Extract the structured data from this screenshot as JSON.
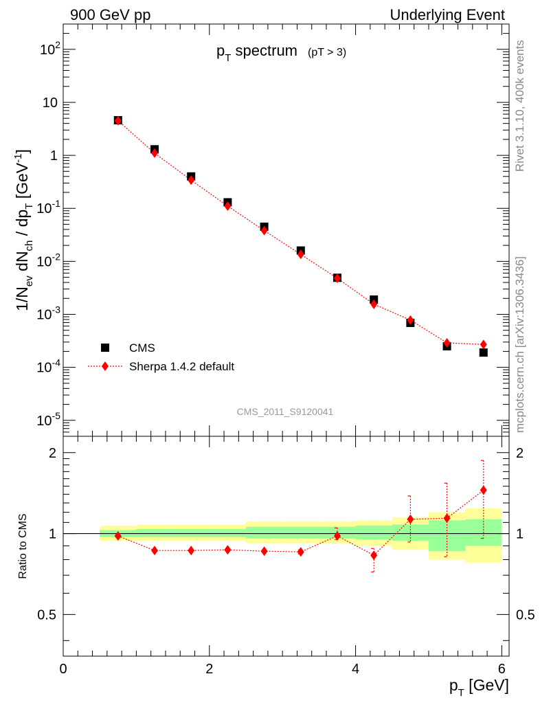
{
  "header": {
    "left": "900 GeV pp",
    "right": "Underlying Event"
  },
  "side": {
    "rivet": "Rivet 3.1.10,  400k events",
    "mcplots": "mcplots.cern.ch [arXiv:1306.3436]"
  },
  "chart_data": [
    {
      "type": "scatter",
      "title_main": "p",
      "title_sub": "T",
      "title_rest": " spectrum",
      "title_cut": "(pT >  3)",
      "analysis_id": "CMS_2011_S9120041",
      "ylabel": "1/N_ev dN_ch / dp_T [GeV^-1]",
      "yscale": "log",
      "ylim": [
        5e-06,
        300
      ],
      "xlim": [
        0,
        6.1
      ],
      "ytick_labels": [
        "10^-5",
        "10^-4",
        "10^-3",
        "10^-2",
        "10^-1",
        "1",
        "10",
        "10^2"
      ],
      "legend": [
        "CMS",
        "Sherpa 1.4.2 default"
      ],
      "legend_position": "bottom-left",
      "series": [
        {
          "name": "CMS",
          "marker": "square",
          "color": "#000000",
          "x": [
            0.75,
            1.25,
            1.75,
            2.25,
            2.75,
            3.25,
            3.75,
            4.25,
            4.75,
            5.25,
            5.75
          ],
          "values": [
            4.6,
            1.3,
            0.4,
            0.13,
            0.045,
            0.016,
            0.0049,
            0.0019,
            0.00069,
            0.00025,
            0.00019
          ]
        },
        {
          "name": "Sherpa 1.4.2 default",
          "marker": "diamond",
          "color": "#ff0000",
          "linestyle": "dotted",
          "x": [
            0.75,
            1.25,
            1.75,
            2.25,
            2.75,
            3.25,
            3.75,
            4.25,
            4.75,
            5.25,
            5.75
          ],
          "values": [
            4.5,
            1.1,
            0.34,
            0.11,
            0.038,
            0.0135,
            0.0048,
            0.00155,
            0.00078,
            0.00029,
            0.00027
          ]
        }
      ]
    },
    {
      "type": "line",
      "ylabel": "Ratio to CMS",
      "xlabel": "p_T [GeV]",
      "xlim": [
        0,
        6.1
      ],
      "ylim": [
        0.35,
        2.3
      ],
      "yscale": "log",
      "yticks": [
        0.5,
        1,
        2
      ],
      "ytick_labels": [
        "0.5",
        "1",
        "2"
      ],
      "xticks": [
        0,
        2,
        4,
        6
      ],
      "xtick_labels": [
        "0",
        "2",
        "4",
        "6"
      ],
      "reference_line": 1,
      "bands": {
        "edges": [
          0.5,
          1.0,
          1.5,
          2.0,
          2.5,
          3.0,
          3.5,
          4.0,
          4.5,
          5.0,
          5.5,
          6.0
        ],
        "yellow_lo": [
          0.94,
          0.94,
          0.94,
          0.94,
          0.92,
          0.92,
          0.92,
          0.9,
          0.87,
          0.8,
          0.78
        ],
        "yellow_hi": [
          1.07,
          1.08,
          1.08,
          1.08,
          1.11,
          1.11,
          1.11,
          1.12,
          1.15,
          1.2,
          1.24
        ],
        "green_lo": [
          0.97,
          0.97,
          0.97,
          0.97,
          0.96,
          0.96,
          0.96,
          0.95,
          0.94,
          0.86,
          0.9
        ],
        "green_hi": [
          1.03,
          1.04,
          1.04,
          1.04,
          1.06,
          1.06,
          1.06,
          1.07,
          1.08,
          1.12,
          1.13
        ]
      },
      "series": [
        {
          "name": "Sherpa 1.4.2 default",
          "color": "#ff0000",
          "x": [
            0.75,
            1.25,
            1.75,
            2.25,
            2.75,
            3.25,
            3.75,
            4.25,
            4.75,
            5.25,
            5.75
          ],
          "values": [
            0.98,
            0.865,
            0.865,
            0.87,
            0.86,
            0.855,
            0.98,
            0.83,
            1.13,
            1.14,
            1.45
          ],
          "err_lo": [
            0.97,
            0.86,
            0.86,
            0.865,
            0.855,
            0.84,
            0.95,
            0.72,
            0.93,
            0.82,
            0.96
          ],
          "err_hi": [
            0.99,
            0.87,
            0.87,
            0.875,
            0.865,
            0.87,
            1.05,
            0.88,
            1.38,
            1.54,
            1.87
          ]
        }
      ]
    }
  ]
}
